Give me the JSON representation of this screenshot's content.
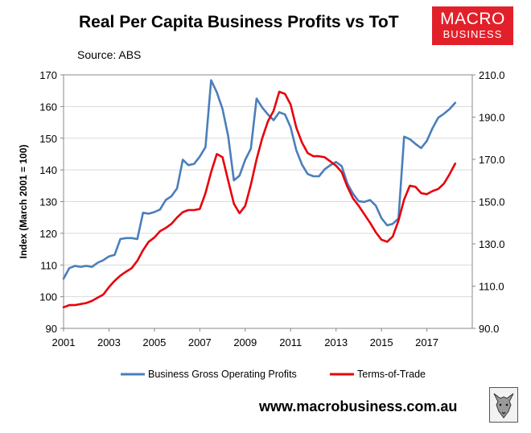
{
  "title": "Real Per Capita Business Profits vs ToT",
  "source": "Source: ABS",
  "logo": {
    "line1": "MACRO",
    "line2": "BUSINESS",
    "color": "#e2202a"
  },
  "url": "www.macrobusiness.com.au",
  "chart_data": {
    "type": "line",
    "title": "Real Per Capita Business Profits vs ToT",
    "ylabel": "Index (March 2001 = 100)",
    "y2label": "",
    "xlim": [
      2001,
      2019
    ],
    "ylim": [
      90,
      170
    ],
    "y2lim": [
      90,
      210
    ],
    "x_ticks": [
      "2001",
      "2003",
      "2005",
      "2007",
      "2009",
      "2011",
      "2013",
      "2015",
      "2017"
    ],
    "y_ticks": [
      "90",
      "100",
      "110",
      "120",
      "130",
      "140",
      "150",
      "160",
      "170"
    ],
    "y2_ticks": [
      "90.0",
      "110.0",
      "130.0",
      "150.0",
      "170.0",
      "190.0",
      "210.0"
    ],
    "legend_position": "bottom",
    "series": [
      {
        "name": "Business Gross Operating Profits",
        "axis": "left",
        "color": "#4a7ebb",
        "x": [
          2001.0,
          2001.25,
          2001.5,
          2001.75,
          2002.0,
          2002.25,
          2002.5,
          2002.75,
          2003.0,
          2003.25,
          2003.5,
          2003.75,
          2004.0,
          2004.25,
          2004.5,
          2004.75,
          2005.0,
          2005.25,
          2005.5,
          2005.75,
          2006.0,
          2006.25,
          2006.5,
          2006.75,
          2007.0,
          2007.25,
          2007.5,
          2007.75,
          2008.0,
          2008.25,
          2008.5,
          2008.75,
          2009.0,
          2009.25,
          2009.5,
          2009.75,
          2010.0,
          2010.25,
          2010.5,
          2010.75,
          2011.0,
          2011.25,
          2011.5,
          2011.75,
          2012.0,
          2012.25,
          2012.5,
          2012.75,
          2013.0,
          2013.25,
          2013.5,
          2013.75,
          2014.0,
          2014.25,
          2014.5,
          2014.75,
          2015.0,
          2015.25,
          2015.5,
          2015.75,
          2016.0,
          2016.25,
          2016.5,
          2016.75,
          2017.0,
          2017.25,
          2017.5,
          2017.75,
          2018.0,
          2018.25
        ],
        "values": [
          105.7,
          109.0,
          109.7,
          109.4,
          109.7,
          109.4,
          110.7,
          111.5,
          112.7,
          113.2,
          118.2,
          118.5,
          118.5,
          118.2,
          126.5,
          126.2,
          126.7,
          127.5,
          130.5,
          131.7,
          134.2,
          143.2,
          141.5,
          141.9,
          144.2,
          147.2,
          168.3,
          164.5,
          159.2,
          150.7,
          136.7,
          138.2,
          143.2,
          146.7,
          162.5,
          159.7,
          157.5,
          155.7,
          158.2,
          157.5,
          153.5,
          146.2,
          141.7,
          138.7,
          138.0,
          138.0,
          140.2,
          141.5,
          142.5,
          141.2,
          135.7,
          132.5,
          130.1,
          129.9,
          130.5,
          128.7,
          124.8,
          122.5,
          123.0,
          124.7,
          150.5,
          149.7,
          148.2,
          146.9,
          149.2,
          153.2,
          156.5,
          157.7,
          159.2,
          161.2
        ]
      },
      {
        "name": "Terms-of-Trade",
        "axis": "right",
        "color": "#e8000b",
        "x": [
          2001.0,
          2001.25,
          2001.5,
          2001.75,
          2002.0,
          2002.25,
          2002.5,
          2002.75,
          2003.0,
          2003.25,
          2003.5,
          2003.75,
          2004.0,
          2004.25,
          2004.5,
          2004.75,
          2005.0,
          2005.25,
          2005.5,
          2005.75,
          2006.0,
          2006.25,
          2006.5,
          2006.75,
          2007.0,
          2007.25,
          2007.5,
          2007.75,
          2008.0,
          2008.25,
          2008.5,
          2008.75,
          2009.0,
          2009.25,
          2009.5,
          2009.75,
          2010.0,
          2010.25,
          2010.5,
          2010.75,
          2011.0,
          2011.25,
          2011.5,
          2011.75,
          2012.0,
          2012.25,
          2012.5,
          2012.75,
          2013.0,
          2013.25,
          2013.5,
          2013.75,
          2014.0,
          2014.25,
          2014.5,
          2014.75,
          2015.0,
          2015.25,
          2015.5,
          2015.75,
          2016.0,
          2016.25,
          2016.5,
          2016.75,
          2017.0,
          2017.25,
          2017.5,
          2017.75,
          2018.0,
          2018.25
        ],
        "values": [
          100.0,
          101.0,
          101.0,
          101.5,
          102.0,
          103.0,
          104.5,
          106.0,
          109.5,
          112.5,
          115.0,
          116.8,
          118.5,
          122.0,
          127.0,
          131.0,
          133.0,
          136.0,
          137.5,
          139.5,
          142.5,
          145.0,
          146.0,
          146.0,
          146.5,
          154.0,
          164.0,
          172.5,
          171.0,
          160.0,
          149.0,
          144.5,
          148.0,
          158.0,
          170.0,
          180.0,
          188.0,
          193.0,
          202.0,
          201.0,
          196.0,
          185.0,
          178.0,
          173.0,
          171.5,
          171.5,
          171.0,
          169.0,
          167.0,
          164.0,
          157.0,
          151.5,
          148.0,
          144.0,
          140.0,
          135.5,
          132.0,
          131.0,
          133.5,
          141.0,
          151.0,
          157.5,
          157.0,
          154.0,
          153.5,
          155.0,
          156.0,
          158.5,
          163.0,
          168.0
        ]
      }
    ]
  }
}
